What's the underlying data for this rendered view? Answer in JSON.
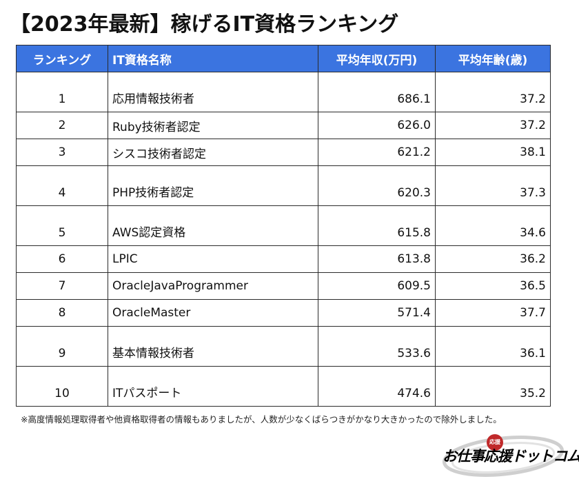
{
  "title": "【2023年最新】稼げるIT資格ランキング",
  "table": {
    "headers": [
      "ランキング",
      "IT資格名称",
      "平均年収(万円)",
      "平均年齢(歳)"
    ],
    "rows": [
      {
        "rank": "1",
        "name": "応用情報技術者",
        "salary": "686.1",
        "age": "37.2"
      },
      {
        "rank": "2",
        "name": "Ruby技術者認定",
        "salary": "626.0",
        "age": "37.2"
      },
      {
        "rank": "3",
        "name": "シスコ技術者認定",
        "salary": "621.2",
        "age": "38.1"
      },
      {
        "rank": "4",
        "name": "PHP技術者認定",
        "salary": "620.3",
        "age": "37.3"
      },
      {
        "rank": "5",
        "name": "AWS認定資格",
        "salary": "615.8",
        "age": "34.6"
      },
      {
        "rank": "6",
        "name": "LPIC",
        "salary": "613.8",
        "age": "36.2"
      },
      {
        "rank": "7",
        "name": "OracleJavaProgrammer",
        "salary": "609.5",
        "age": "36.5"
      },
      {
        "rank": "8",
        "name": "OracleMaster",
        "salary": "571.4",
        "age": "37.7"
      },
      {
        "rank": "9",
        "name": "基本情報技術者",
        "salary": "533.6",
        "age": "36.1"
      },
      {
        "rank": "10",
        "name": "ITパスポート",
        "salary": "474.6",
        "age": "35.2"
      }
    ]
  },
  "footnote": "※高度情報処理取得者や他資格取得者の情報もありましたが、人数が少なくばらつきがかなり大きかったので除外しました。",
  "logo": {
    "text": "お仕事応援ドットコム",
    "seal_text": "応援"
  },
  "colors": {
    "header_bg": "#3b74e0",
    "header_text": "#ffffff",
    "seal": "#c0292a"
  }
}
